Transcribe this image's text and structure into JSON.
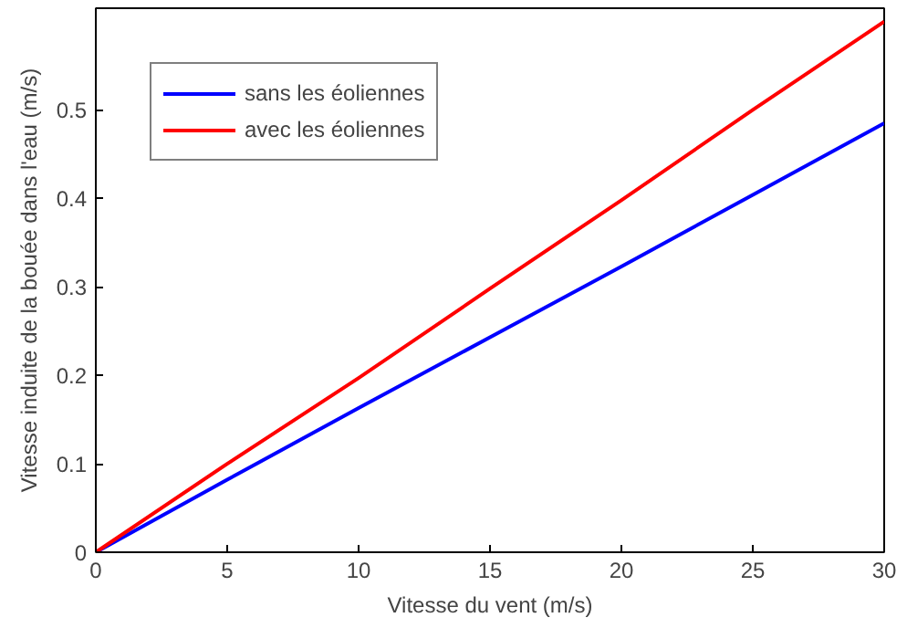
{
  "chart_data": {
    "type": "line",
    "xlabel": "Vitesse du vent (m/s)",
    "ylabel": "Vitesse induite de la bouée dans l'eau (m/s)",
    "x": [
      0,
      5,
      10,
      15,
      20,
      25,
      30
    ],
    "series": [
      {
        "name": "sans les éoliennes",
        "color": "#0000ff",
        "values": [
          0,
          0.082,
          0.163,
          0.243,
          0.323,
          0.404,
          0.485
        ]
      },
      {
        "name": "avec les éoliennes",
        "color": "#ff0000",
        "values": [
          0,
          0.1,
          0.197,
          0.298,
          0.398,
          0.5,
          0.6
        ]
      }
    ],
    "xlim": [
      0,
      30
    ],
    "ylim": [
      0,
      0.615
    ],
    "xticks": [
      0,
      5,
      10,
      15,
      20,
      25,
      30
    ],
    "yticks": [
      0,
      0.1,
      0.2,
      0.3,
      0.4,
      0.5
    ],
    "grid": false,
    "legend": "top left",
    "marker": "none",
    "line_style": "solid"
  }
}
